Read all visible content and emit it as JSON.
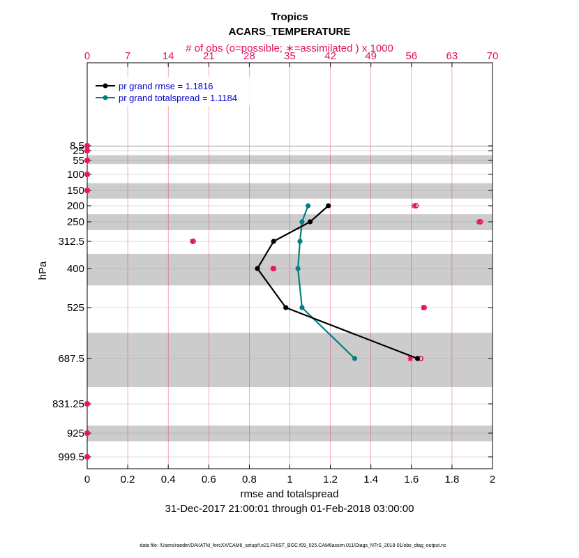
{
  "chart_data": {
    "type": "line",
    "title": "Tropics",
    "subtitle": "ACARS_TEMPERATURE",
    "xlabel": "rmse and totalspread",
    "xlabel_top": "# of obs (o=possible; ∗=assimilated ) x 1000",
    "ylabel": "hPa",
    "date_range": "31-Dec-2017 21:00:01 through 01-Feb-2018 03:00:00",
    "footnote": "data file: /Users/raeder/DAI/ATM_forcXX/CAM6_setup/f.e21.FHIST_BGC.f09_025.CAM6assim.011/Diags_NTrS_2018-01/obs_diag_output.nc",
    "xlim": [
      0,
      2
    ],
    "xticks": [
      "0",
      "0.2",
      "0.4",
      "0.6",
      "0.8",
      "1",
      "1.2",
      "1.4",
      "1.6",
      "1.8",
      "2"
    ],
    "xlim_top": [
      0,
      70
    ],
    "xticks_top": [
      "0",
      "7",
      "14",
      "21",
      "28",
      "35",
      "42",
      "49",
      "56",
      "63",
      "70"
    ],
    "levels": [
      8.5,
      25,
      55,
      100,
      150,
      200,
      250,
      312.5,
      400,
      525,
      687.5,
      831.25,
      925,
      999.5
    ],
    "level_labels": [
      "8.5",
      "25",
      "55",
      "100",
      "150",
      "200",
      "250",
      "312.5",
      "400",
      "525",
      "687.5",
      "831.25",
      "925",
      "999.5"
    ],
    "grey_bands": [
      [
        9,
        11
      ],
      [
        36,
        64
      ],
      [
        125,
        175
      ],
      [
        225,
        275
      ],
      [
        350,
        450
      ],
      [
        600,
        775
      ],
      [
        900,
        950
      ]
    ],
    "grid": true,
    "legend_position": "top-left",
    "series": [
      {
        "name": "pr grand rmse = 1.1816",
        "color": "#000000",
        "points": [
          {
            "level": 200,
            "value": 1.19
          },
          {
            "level": 250,
            "value": 1.1
          },
          {
            "level": 312.5,
            "value": 0.92
          },
          {
            "level": 400,
            "value": 0.84
          },
          {
            "level": 525,
            "value": 0.98
          },
          {
            "level": 687.5,
            "value": 1.63
          }
        ]
      },
      {
        "name": "pr grand totalspread = 1.1184",
        "color": "#008080",
        "points": [
          {
            "level": 200,
            "value": 1.09
          },
          {
            "level": 250,
            "value": 1.06
          },
          {
            "level": 312.5,
            "value": 1.05
          },
          {
            "level": 400,
            "value": 1.04
          },
          {
            "level": 525,
            "value": 1.06
          },
          {
            "level": 687.5,
            "value": 1.32
          }
        ]
      }
    ],
    "obs_possible": [
      {
        "level": 8.5,
        "count": 0
      },
      {
        "level": 25,
        "count": 0
      },
      {
        "level": 55,
        "count": 0
      },
      {
        "level": 100,
        "count": 0
      },
      {
        "level": 150,
        "count": 0
      },
      {
        "level": 200,
        "count": 56.8
      },
      {
        "level": 250,
        "count": 67.9
      },
      {
        "level": 312.5,
        "count": 18.3
      },
      {
        "level": 400,
        "count": 32.2
      },
      {
        "level": 525,
        "count": 58.2
      },
      {
        "level": 687.5,
        "count": 57.6
      },
      {
        "level": 831.25,
        "count": 0
      },
      {
        "level": 925,
        "count": 0
      },
      {
        "level": 999.5,
        "count": 0
      }
    ],
    "obs_assimilated": [
      {
        "level": 8.5,
        "count": 0
      },
      {
        "level": 25,
        "count": 0
      },
      {
        "level": 55,
        "count": 0
      },
      {
        "level": 100,
        "count": 0
      },
      {
        "level": 150,
        "count": 0
      },
      {
        "level": 200,
        "count": 56.5
      },
      {
        "level": 250,
        "count": 67.7
      },
      {
        "level": 312.5,
        "count": 18.2
      },
      {
        "level": 400,
        "count": 32.1
      },
      {
        "level": 525,
        "count": 58.1
      },
      {
        "level": 687.5,
        "count": 55.8
      },
      {
        "level": 831.25,
        "count": 0
      },
      {
        "level": 925,
        "count": 0
      },
      {
        "level": 999.5,
        "count": 0
      }
    ],
    "colors": {
      "obs": "#e0115f",
      "band": "#cccccc",
      "grid_v": "#e0115f",
      "axis": "#000000"
    }
  }
}
